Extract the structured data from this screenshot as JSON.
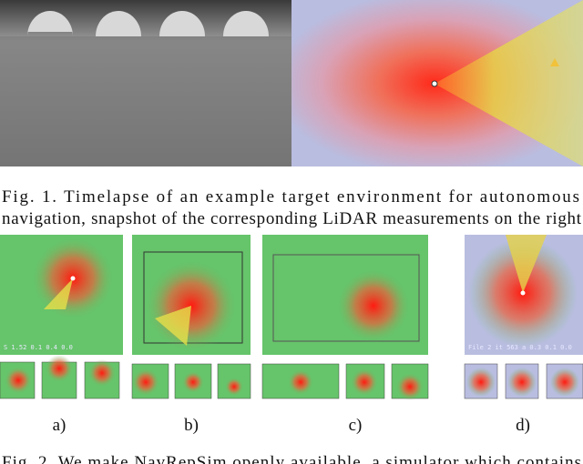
{
  "figure1": {
    "caption_lines": [
      "Fig. 1.   Timelapse of an example target environment for autonomous",
      "navigation, snapshot of the corresponding LiDAR measurements on the right"
    ]
  },
  "figure2": {
    "panel_overlays": [
      "S 1.52 0.1 0.4 0.0",
      "File 2 it 563 a 0.3 0.1 0.0"
    ],
    "panel_labels": [
      "a)",
      "b)",
      "c)",
      "d)"
    ],
    "caption": "Fig. 2.   We make NavRepSim openly available, a simulator which contains"
  }
}
